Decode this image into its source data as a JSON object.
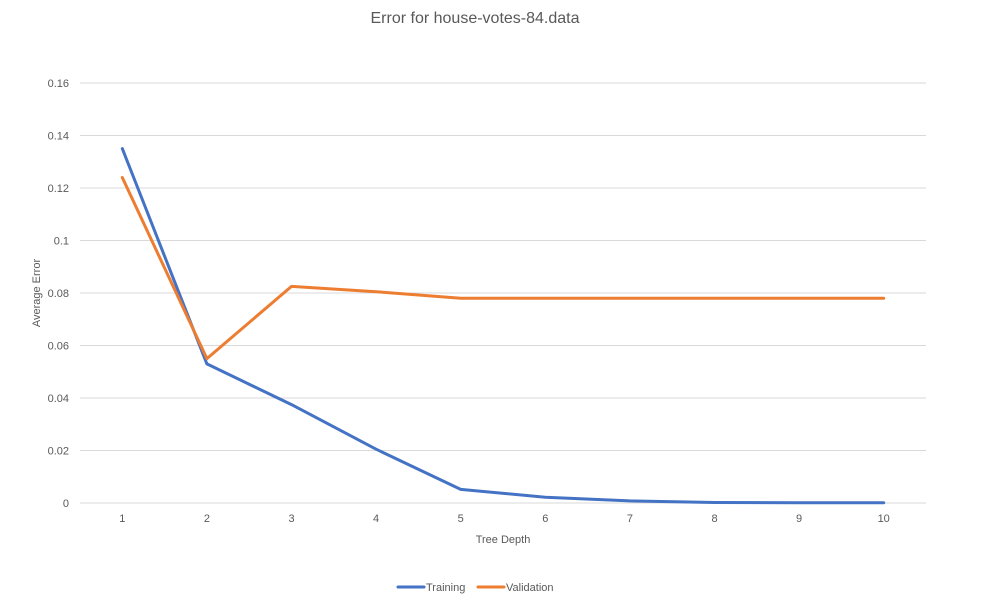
{
  "chart_data": {
    "type": "line",
    "title": "Error for house-votes-84.data",
    "xlabel": "Tree Depth",
    "ylabel": "Average Error",
    "x": [
      1,
      2,
      3,
      4,
      5,
      6,
      7,
      8,
      9,
      10
    ],
    "x_tick_labels": [
      "1",
      "2",
      "3",
      "4",
      "5",
      "6",
      "7",
      "8",
      "9",
      "10"
    ],
    "ylim": [
      0,
      0.16
    ],
    "y_ticks": [
      0,
      0.02,
      0.04,
      0.06,
      0.08,
      0.1,
      0.12,
      0.14,
      0.16
    ],
    "y_tick_labels": [
      "0",
      "0.02",
      "0.04",
      "0.06",
      "0.08",
      "0.1",
      "0.12",
      "0.14",
      "0.16"
    ],
    "grid": true,
    "legend_position": "bottom",
    "series": [
      {
        "name": "Training",
        "color": "#4472c4",
        "values": [
          0.135,
          0.053,
          0.0375,
          0.0205,
          0.0052,
          0.0022,
          0.0008,
          0.0002,
          0.0001,
          0.0001
        ]
      },
      {
        "name": "Validation",
        "color": "#ed7d31",
        "values": [
          0.124,
          0.055,
          0.0825,
          0.0805,
          0.078,
          0.078,
          0.078,
          0.078,
          0.078,
          0.078
        ]
      }
    ]
  }
}
